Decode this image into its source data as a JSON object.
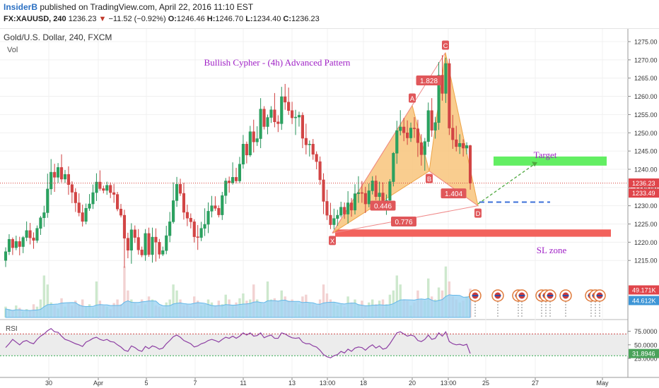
{
  "header": {
    "author": "InsiderB",
    "published_text": "published on TradingView.com, April 22, 2016 11:10 EST",
    "symbol": "FX:XAUUSD, 240",
    "last": "1236.23",
    "change": "−11.52 (−0.92%)",
    "open_label": "O:",
    "open": "1246.46",
    "high_label": "H:",
    "high": "1246.70",
    "low_label": "L:",
    "low": "1234.40",
    "close_label": "C:",
    "close": "1236.23"
  },
  "legend": {
    "title": "Gold/U.S. Dollar, 240, FXCM",
    "vol": "Vol"
  },
  "rsi_label": "RSI",
  "chart_data": {
    "type": "candlestick",
    "title": "Bullish Cypher - (4h) Advanced Pattern",
    "y_ticks": [
      "1275.00",
      "1270.00",
      "1265.00",
      "1260.00",
      "1255.00",
      "1250.00",
      "1245.00",
      "1240.00",
      "1235.00",
      "1230.00",
      "1225.00",
      "1220.00",
      "1215.00"
    ],
    "ylim": [
      1208,
      1279
    ],
    "x_ticks": [
      "30",
      "Apr",
      "5",
      "7",
      "11",
      "13",
      "13:00",
      "18",
      "20",
      "13:00",
      "25",
      "27",
      "May"
    ],
    "price_tags": [
      {
        "text": "1236.23",
        "color": "#e0454b"
      },
      {
        "text": "1233.49",
        "color": "#e0454b"
      },
      {
        "text": "49.171K",
        "color": "#e0454b"
      },
      {
        "text": "44.612K",
        "color": "#3d95d6"
      }
    ],
    "points": [
      {
        "label": "X",
        "price": 1222.5
      },
      {
        "label": "A",
        "price": 1257.5
      },
      {
        "label": "B",
        "price": 1239.5
      },
      {
        "label": "C",
        "price": 1272.0
      },
      {
        "label": "D",
        "price": 1230.0
      }
    ],
    "ratios": [
      "0.446",
      "1.828",
      "1.404",
      "0.776"
    ],
    "annotations": {
      "target": "Target",
      "sl": "SL zone"
    },
    "target_zone": [
      1241.0,
      1243.5
    ],
    "sl_zone": [
      1221.5,
      1223.5
    ],
    "rsi": {
      "ticks": [
        "75.0000",
        "50.0000",
        "25.0000"
      ],
      "last": "31.8946",
      "overbought": 70,
      "oversold": 30
    },
    "ohlc": [
      [
        1215.0,
        1218.6,
        1213.2,
        1217.4
      ],
      [
        1217.4,
        1222.2,
        1216.5,
        1220.8
      ],
      [
        1220.8,
        1221.3,
        1216.5,
        1218.5
      ],
      [
        1218.5,
        1221.8,
        1217.8,
        1220.2
      ],
      [
        1220.2,
        1221.5,
        1216.4,
        1218.8
      ],
      [
        1218.8,
        1221.7,
        1217.0,
        1221.3
      ],
      [
        1221.3,
        1225.7,
        1220.3,
        1223.2
      ],
      [
        1223.2,
        1225.3,
        1219.4,
        1221.2
      ],
      [
        1221.2,
        1222.7,
        1218.2,
        1220.5
      ],
      [
        1220.5,
        1224.6,
        1219.8,
        1223.8
      ],
      [
        1223.8,
        1227.2,
        1222.0,
        1226.7
      ],
      [
        1226.7,
        1230.0,
        1224.2,
        1228.1
      ],
      [
        1228.1,
        1238.8,
        1226.7,
        1234.6
      ],
      [
        1234.6,
        1242.8,
        1233.0,
        1239.2
      ],
      [
        1239.2,
        1241.5,
        1233.8,
        1237.8
      ],
      [
        1237.8,
        1241.7,
        1236.2,
        1240.5
      ],
      [
        1240.5,
        1244.1,
        1236.4,
        1237.3
      ],
      [
        1237.3,
        1239.8,
        1236.3,
        1238.6
      ],
      [
        1238.6,
        1240.8,
        1233.0,
        1235.8
      ],
      [
        1235.8,
        1236.7,
        1230.7,
        1233.7
      ],
      [
        1233.7,
        1234.8,
        1228.3,
        1230.8
      ],
      [
        1230.8,
        1233.4,
        1227.1,
        1228.1
      ],
      [
        1228.1,
        1230.3,
        1224.3,
        1225.7
      ],
      [
        1225.7,
        1230.6,
        1224.9,
        1229.3
      ],
      [
        1229.3,
        1233.2,
        1228.6,
        1230.5
      ],
      [
        1230.5,
        1235.8,
        1229.1,
        1233.6
      ],
      [
        1233.6,
        1238.9,
        1231.3,
        1236.5
      ],
      [
        1236.5,
        1239.7,
        1234.1,
        1234.7
      ],
      [
        1234.7,
        1235.5,
        1233.4,
        1234.2
      ],
      [
        1234.2,
        1236.6,
        1233.0,
        1235.6
      ],
      [
        1235.6,
        1236.4,
        1232.1,
        1233.6
      ],
      [
        1233.6,
        1236.0,
        1230.8,
        1233.1
      ],
      [
        1233.1,
        1233.8,
        1228.5,
        1229.1
      ],
      [
        1229.1,
        1230.5,
        1226.8,
        1227.4
      ],
      [
        1227.4,
        1228.9,
        1213.0,
        1221.1
      ],
      [
        1221.1,
        1222.6,
        1215.6,
        1217.8
      ],
      [
        1217.8,
        1225.2,
        1214.1,
        1223.4
      ],
      [
        1223.4,
        1224.6,
        1219.8,
        1221.3
      ],
      [
        1221.3,
        1223.6,
        1216.6,
        1217.9
      ],
      [
        1217.9,
        1218.8,
        1215.9,
        1216.5
      ],
      [
        1216.5,
        1223.6,
        1214.9,
        1222.4
      ],
      [
        1222.4,
        1224.0,
        1216.0,
        1216.6
      ],
      [
        1216.6,
        1224.0,
        1214.4,
        1221.4
      ],
      [
        1221.4,
        1223.8,
        1214.7,
        1220.0
      ],
      [
        1220.0,
        1220.9,
        1215.5,
        1216.7
      ],
      [
        1216.7,
        1218.8,
        1216.2,
        1217.7
      ],
      [
        1217.7,
        1224.5,
        1216.7,
        1221.8
      ],
      [
        1221.8,
        1228.3,
        1220.0,
        1225.6
      ],
      [
        1225.6,
        1236.4,
        1225.1,
        1231.4
      ],
      [
        1231.4,
        1237.9,
        1229.7,
        1235.9
      ],
      [
        1235.9,
        1237.4,
        1232.7,
        1233.4
      ],
      [
        1233.4,
        1236.3,
        1226.2,
        1228.2
      ],
      [
        1228.2,
        1230.3,
        1224.4,
        1226.6
      ],
      [
        1226.6,
        1227.9,
        1223.8,
        1225.6
      ],
      [
        1225.6,
        1226.3,
        1219.9,
        1221.5
      ],
      [
        1221.5,
        1224.7,
        1217.9,
        1221.3
      ],
      [
        1221.3,
        1225.6,
        1220.3,
        1223.8
      ],
      [
        1223.8,
        1229.3,
        1221.7,
        1224.9
      ],
      [
        1224.9,
        1230.9,
        1222.5,
        1228.5
      ],
      [
        1228.5,
        1232.7,
        1226.8,
        1230.0
      ],
      [
        1230.0,
        1232.6,
        1228.6,
        1229.3
      ],
      [
        1229.3,
        1230.1,
        1226.8,
        1227.5
      ],
      [
        1227.5,
        1233.8,
        1226.1,
        1232.8
      ],
      [
        1232.8,
        1237.6,
        1230.5,
        1236.8
      ],
      [
        1236.8,
        1238.0,
        1233.6,
        1236.3
      ],
      [
        1236.3,
        1241.9,
        1235.8,
        1237.8
      ],
      [
        1237.8,
        1240.4,
        1236.1,
        1236.8
      ],
      [
        1236.8,
        1243.4,
        1236.2,
        1241.4
      ],
      [
        1241.4,
        1249.4,
        1240.2,
        1246.9
      ],
      [
        1246.9,
        1247.6,
        1241.6,
        1243.9
      ],
      [
        1243.9,
        1251.9,
        1243.4,
        1250.3
      ],
      [
        1250.3,
        1253.6,
        1244.6,
        1247.5
      ],
      [
        1247.5,
        1251.8,
        1246.4,
        1248.4
      ],
      [
        1248.4,
        1259.5,
        1245.8,
        1256.5
      ],
      [
        1256.5,
        1257.3,
        1250.9,
        1251.7
      ],
      [
        1251.7,
        1255.0,
        1249.6,
        1254.2
      ],
      [
        1254.2,
        1257.3,
        1252.7,
        1256.3
      ],
      [
        1256.3,
        1260.9,
        1251.5,
        1253.0
      ],
      [
        1253.0,
        1254.8,
        1250.2,
        1252.5
      ],
      [
        1252.5,
        1262.6,
        1250.8,
        1259.9
      ],
      [
        1259.9,
        1263.4,
        1256.3,
        1258.4
      ],
      [
        1258.4,
        1262.4,
        1254.9,
        1256.1
      ],
      [
        1256.1,
        1258.5,
        1252.4,
        1254.1
      ],
      [
        1254.1,
        1256.3,
        1249.4,
        1254.3
      ],
      [
        1254.3,
        1255.8,
        1251.7,
        1254.8
      ],
      [
        1254.8,
        1255.6,
        1245.8,
        1248.5
      ],
      [
        1248.5,
        1252.5,
        1244.1,
        1246.7
      ],
      [
        1246.7,
        1247.9,
        1243.5,
        1246.9
      ],
      [
        1246.9,
        1248.3,
        1242.6,
        1244.1
      ],
      [
        1244.1,
        1244.9,
        1240.0,
        1242.1
      ],
      [
        1242.1,
        1243.5,
        1235.7,
        1237.1
      ],
      [
        1237.1,
        1238.9,
        1227.7,
        1231.2
      ],
      [
        1231.2,
        1234.4,
        1226.1,
        1227.4
      ],
      [
        1227.4,
        1230.8,
        1223.6,
        1224.8
      ],
      [
        1224.8,
        1229.2,
        1223.5,
        1226.5
      ],
      [
        1226.5,
        1228.9,
        1224.5,
        1227.4
      ],
      [
        1227.4,
        1231.1,
        1226.8,
        1229.6
      ],
      [
        1229.6,
        1230.9,
        1226.4,
        1227.7
      ],
      [
        1227.7,
        1234.0,
        1225.1,
        1230.8
      ],
      [
        1230.8,
        1232.1,
        1227.0,
        1228.8
      ],
      [
        1228.8,
        1235.9,
        1227.6,
        1233.3
      ],
      [
        1233.3,
        1238.1,
        1230.8,
        1233.6
      ],
      [
        1233.6,
        1236.8,
        1230.8,
        1233.4
      ],
      [
        1233.4,
        1235.2,
        1228.0,
        1230.5
      ],
      [
        1230.5,
        1236.1,
        1229.6,
        1234.1
      ],
      [
        1234.1,
        1238.1,
        1233.1,
        1236.8
      ],
      [
        1236.8,
        1238.3,
        1231.5,
        1232.5
      ],
      [
        1232.5,
        1236.6,
        1229.0,
        1233.5
      ],
      [
        1233.5,
        1236.4,
        1229.0,
        1230.4
      ],
      [
        1230.4,
        1233.1,
        1227.5,
        1231.5
      ],
      [
        1231.5,
        1237.3,
        1231.2,
        1236.6
      ],
      [
        1236.6,
        1244.7,
        1235.3,
        1244.4
      ],
      [
        1244.4,
        1253.3,
        1241.5,
        1250.6
      ],
      [
        1250.6,
        1256.2,
        1249.3,
        1251.6
      ],
      [
        1251.6,
        1254.1,
        1247.7,
        1250.0
      ],
      [
        1250.0,
        1253.4,
        1246.7,
        1248.6
      ],
      [
        1248.6,
        1252.8,
        1247.5,
        1251.3
      ],
      [
        1251.3,
        1254.3,
        1248.6,
        1251.1
      ],
      [
        1251.1,
        1253.6,
        1243.4,
        1247.3
      ],
      [
        1247.3,
        1249.6,
        1241.0,
        1244.0
      ],
      [
        1244.0,
        1248.6,
        1239.6,
        1247.6
      ],
      [
        1247.6,
        1258.3,
        1246.2,
        1256.1
      ],
      [
        1256.1,
        1259.5,
        1248.9,
        1250.7
      ],
      [
        1250.7,
        1254.4,
        1248.4,
        1252.8
      ],
      [
        1252.8,
        1269.4,
        1250.8,
        1265.8
      ],
      [
        1265.8,
        1271.3,
        1258.8,
        1260.8
      ],
      [
        1260.8,
        1270.6,
        1258.2,
        1269.0
      ],
      [
        1269.0,
        1270.3,
        1249.4,
        1251.3
      ],
      [
        1251.3,
        1254.9,
        1245.6,
        1248.1
      ],
      [
        1248.1,
        1251.9,
        1244.9,
        1246.2
      ],
      [
        1246.2,
        1249.6,
        1244.2,
        1247.1
      ],
      [
        1247.1,
        1248.2,
        1243.5,
        1245.8
      ],
      [
        1245.8,
        1247.4,
        1244.1,
        1246.5
      ],
      [
        1246.5,
        1246.7,
        1234.4,
        1236.2
      ]
    ],
    "volume": [
      0.18,
      0.14,
      0.12,
      0.2,
      0.16,
      0.1,
      0.14,
      0.12,
      0.22,
      0.18,
      0.3,
      0.7,
      0.55,
      0.25,
      0.2,
      0.15,
      0.32,
      0.18,
      0.25,
      0.2,
      0.28,
      0.22,
      0.3,
      0.18,
      0.22,
      0.16,
      0.6,
      0.28,
      0.2,
      0.18,
      0.14,
      0.24,
      0.3,
      0.22,
      0.85,
      0.45,
      0.3,
      0.25,
      0.2,
      0.3,
      0.22,
      0.35,
      0.3,
      0.2,
      0.18,
      0.16,
      0.25,
      0.3,
      0.55,
      0.45,
      0.3,
      0.2,
      0.22,
      0.18,
      0.35,
      0.28,
      0.2,
      0.22,
      0.3,
      0.25,
      0.2,
      0.28,
      0.22,
      0.38,
      0.3,
      0.2,
      0.25,
      0.32,
      0.4,
      0.28,
      0.3,
      0.55,
      0.3,
      0.25,
      0.22,
      0.6,
      0.3,
      0.32,
      0.28,
      0.45,
      0.35,
      0.28,
      0.3,
      0.25,
      0.22,
      0.35,
      0.38,
      0.25,
      0.22,
      0.2,
      0.3,
      0.55,
      0.4,
      0.3,
      0.25,
      0.2,
      0.22,
      0.18,
      0.35,
      0.25,
      0.3,
      0.22,
      0.28,
      0.2,
      0.25,
      0.3,
      0.22,
      0.28,
      0.3,
      0.22,
      0.38,
      0.45,
      0.7,
      0.55,
      0.3,
      0.28,
      0.2,
      0.25,
      0.45,
      0.3,
      0.28,
      0.65,
      0.35,
      0.3,
      0.5,
      0.45,
      0.85,
      0.6,
      0.35,
      0.3,
      0.25,
      0.28,
      0.35,
      0.48
    ],
    "rsi_values": [
      45,
      52,
      60,
      55,
      50,
      56,
      58,
      54,
      52,
      60,
      66,
      70,
      76,
      80,
      74,
      73,
      66,
      60,
      58,
      55,
      52,
      50,
      47,
      55,
      58,
      62,
      64,
      60,
      58,
      60,
      56,
      55,
      50,
      46,
      40,
      38,
      48,
      45,
      40,
      38,
      47,
      43,
      48,
      46,
      42,
      44,
      52,
      58,
      65,
      68,
      64,
      58,
      55,
      52,
      46,
      48,
      52,
      54,
      58,
      60,
      58,
      55,
      60,
      64,
      62,
      66,
      62,
      66,
      72,
      68,
      72,
      66,
      67,
      72,
      63,
      66,
      68,
      62,
      62,
      72,
      70,
      66,
      63,
      62,
      63,
      55,
      52,
      52,
      48,
      46,
      40,
      32,
      28,
      26,
      30,
      32,
      38,
      35,
      42,
      38,
      44,
      46,
      45,
      40,
      46,
      50,
      44,
      48,
      42,
      44,
      52,
      62,
      72,
      74,
      70,
      66,
      68,
      66,
      58,
      56,
      60,
      68,
      60,
      62,
      72,
      66,
      74,
      56,
      52,
      50,
      51,
      49,
      51,
      34
    ]
  }
}
